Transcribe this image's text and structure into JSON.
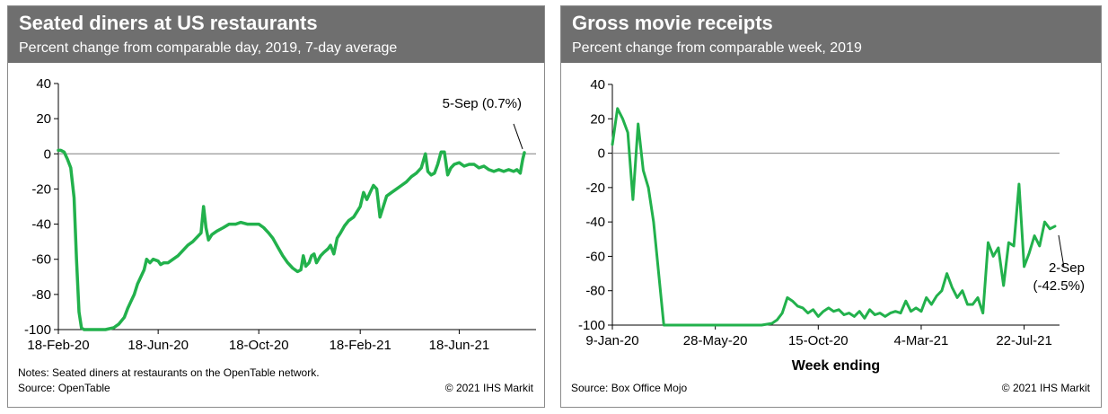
{
  "colors": {
    "series": "#22b14c",
    "header_bg": "#6f6f6f",
    "zero_line": "#7f7f7f"
  },
  "panels": {
    "left": {
      "title": "Seated diners at US restaurants",
      "subtitle": "Percent change from comparable day, 2019, 7-day average",
      "notes": "Notes: Seated diners at restaurants on the OpenTable network.",
      "source": "Source: OpenTable",
      "copyright": "© 2021 IHS Markit"
    },
    "right": {
      "title": "Gross movie receipts",
      "subtitle": "Percent change from comparable week, 2019",
      "source": "Source: Box Office Mojo",
      "copyright": "© 2021 IHS Markit"
    }
  },
  "chart_data": [
    {
      "type": "line",
      "title": "Seated diners at US restaurants",
      "subtitle": "Percent change from comparable day, 2019, 7-day average",
      "xlabel": "",
      "ylabel": "",
      "x_range": [
        "2020-02-18",
        "2021-09-05"
      ],
      "ylim": [
        -100,
        40
      ],
      "yticks": [
        40,
        20,
        0,
        -20,
        -40,
        -60,
        -80,
        -100
      ],
      "xticks": [
        {
          "date": "2020-02-18",
          "label": "18-Feb-20"
        },
        {
          "date": "2020-06-18",
          "label": "18-Jun-20"
        },
        {
          "date": "2020-10-18",
          "label": "18-Oct-20"
        },
        {
          "date": "2021-02-18",
          "label": "18-Feb-21"
        },
        {
          "date": "2021-06-18",
          "label": "18-Jun-21"
        }
      ],
      "grid": false,
      "zero_line": true,
      "annotation": {
        "text": "5-Sep (0.7%)",
        "date": "2021-09-05",
        "value": 0.7
      },
      "series": [
        {
          "points": [
            [
              "2020-02-18",
              2
            ],
            [
              "2020-02-21",
              2
            ],
            [
              "2020-02-25",
              1
            ],
            [
              "2020-02-29",
              -3
            ],
            [
              "2020-03-04",
              -8
            ],
            [
              "2020-03-08",
              -25
            ],
            [
              "2020-03-11",
              -60
            ],
            [
              "2020-03-14",
              -90
            ],
            [
              "2020-03-17",
              -99
            ],
            [
              "2020-03-20",
              -100
            ],
            [
              "2020-04-01",
              -100
            ],
            [
              "2020-04-15",
              -100
            ],
            [
              "2020-04-25",
              -99
            ],
            [
              "2020-05-01",
              -97
            ],
            [
              "2020-05-08",
              -93
            ],
            [
              "2020-05-12",
              -88
            ],
            [
              "2020-05-16",
              -84
            ],
            [
              "2020-05-20",
              -80
            ],
            [
              "2020-05-24",
              -74
            ],
            [
              "2020-05-28",
              -70
            ],
            [
              "2020-06-01",
              -66
            ],
            [
              "2020-06-04",
              -60
            ],
            [
              "2020-06-08",
              -62
            ],
            [
              "2020-06-12",
              -60
            ],
            [
              "2020-06-18",
              -61
            ],
            [
              "2020-06-21",
              -63
            ],
            [
              "2020-06-25",
              -62
            ],
            [
              "2020-06-30",
              -62
            ],
            [
              "2020-07-06",
              -60
            ],
            [
              "2020-07-12",
              -58
            ],
            [
              "2020-07-18",
              -55
            ],
            [
              "2020-07-24",
              -52
            ],
            [
              "2020-07-30",
              -50
            ],
            [
              "2020-08-05",
              -47
            ],
            [
              "2020-08-09",
              -45
            ],
            [
              "2020-08-12",
              -30
            ],
            [
              "2020-08-15",
              -42
            ],
            [
              "2020-08-18",
              -49
            ],
            [
              "2020-08-22",
              -46
            ],
            [
              "2020-08-28",
              -44
            ],
            [
              "2020-09-05",
              -42
            ],
            [
              "2020-09-12",
              -40
            ],
            [
              "2020-09-20",
              -40
            ],
            [
              "2020-09-26",
              -39
            ],
            [
              "2020-10-04",
              -40
            ],
            [
              "2020-10-10",
              -40
            ],
            [
              "2020-10-18",
              -40
            ],
            [
              "2020-10-24",
              -42
            ],
            [
              "2020-10-30",
              -45
            ],
            [
              "2020-11-04",
              -48
            ],
            [
              "2020-11-10",
              -53
            ],
            [
              "2020-11-16",
              -58
            ],
            [
              "2020-11-22",
              -62
            ],
            [
              "2020-11-28",
              -65
            ],
            [
              "2020-12-04",
              -67
            ],
            [
              "2020-12-08",
              -66
            ],
            [
              "2020-12-11",
              -58
            ],
            [
              "2020-12-14",
              -64
            ],
            [
              "2020-12-18",
              -62
            ],
            [
              "2020-12-21",
              -58
            ],
            [
              "2020-12-24",
              -57
            ],
            [
              "2020-12-27",
              -62
            ],
            [
              "2021-01-01",
              -58
            ],
            [
              "2021-01-05",
              -56
            ],
            [
              "2021-01-10",
              -54
            ],
            [
              "2021-01-13",
              -52
            ],
            [
              "2021-01-17",
              -57
            ],
            [
              "2021-01-21",
              -48
            ],
            [
              "2021-01-25",
              -45
            ],
            [
              "2021-01-30",
              -41
            ],
            [
              "2021-02-04",
              -38
            ],
            [
              "2021-02-10",
              -36
            ],
            [
              "2021-02-14",
              -33
            ],
            [
              "2021-02-18",
              -30
            ],
            [
              "2021-02-22",
              -22
            ],
            [
              "2021-02-26",
              -26
            ],
            [
              "2021-03-02",
              -22
            ],
            [
              "2021-03-06",
              -18
            ],
            [
              "2021-03-10",
              -20
            ],
            [
              "2021-03-14",
              -36
            ],
            [
              "2021-03-18",
              -30
            ],
            [
              "2021-03-22",
              -24
            ],
            [
              "2021-03-28",
              -22
            ],
            [
              "2021-04-03",
              -20
            ],
            [
              "2021-04-09",
              -18
            ],
            [
              "2021-04-15",
              -16
            ],
            [
              "2021-04-21",
              -13
            ],
            [
              "2021-04-27",
              -11
            ],
            [
              "2021-05-03",
              -8
            ],
            [
              "2021-05-08",
              0
            ],
            [
              "2021-05-11",
              -10
            ],
            [
              "2021-05-15",
              -12
            ],
            [
              "2021-05-19",
              -11
            ],
            [
              "2021-05-23",
              -6
            ],
            [
              "2021-05-27",
              1
            ],
            [
              "2021-05-31",
              1
            ],
            [
              "2021-06-04",
              -12
            ],
            [
              "2021-06-08",
              -8
            ],
            [
              "2021-06-12",
              -6
            ],
            [
              "2021-06-18",
              -5
            ],
            [
              "2021-06-24",
              -7
            ],
            [
              "2021-06-30",
              -6
            ],
            [
              "2021-07-06",
              -6
            ],
            [
              "2021-07-12",
              -8
            ],
            [
              "2021-07-18",
              -7
            ],
            [
              "2021-07-24",
              -9
            ],
            [
              "2021-07-30",
              -10
            ],
            [
              "2021-08-05",
              -9
            ],
            [
              "2021-08-11",
              -10
            ],
            [
              "2021-08-17",
              -9
            ],
            [
              "2021-08-23",
              -10
            ],
            [
              "2021-08-27",
              -9
            ],
            [
              "2021-08-31",
              -11
            ],
            [
              "2021-09-03",
              -3
            ],
            [
              "2021-09-05",
              0.7
            ]
          ]
        }
      ]
    },
    {
      "type": "line",
      "title": "Gross movie receipts",
      "subtitle": "Percent change from comparable week, 2019",
      "xlabel": "Week ending",
      "ylabel": "",
      "x_range": [
        "2020-01-09",
        "2021-09-02"
      ],
      "ylim": [
        -100,
        40
      ],
      "yticks": [
        40,
        20,
        0,
        -20,
        -40,
        -60,
        -80,
        -100
      ],
      "xticks": [
        {
          "date": "2020-01-09",
          "label": "9-Jan-20"
        },
        {
          "date": "2020-05-28",
          "label": "28-May-20"
        },
        {
          "date": "2020-10-15",
          "label": "15-Oct-20"
        },
        {
          "date": "2021-03-04",
          "label": "4-Mar-21"
        },
        {
          "date": "2021-07-22",
          "label": "22-Jul-21"
        }
      ],
      "grid": false,
      "zero_line": true,
      "annotation": {
        "text": [
          "2-Sep",
          "(-42.5%)"
        ],
        "date": "2021-09-02",
        "value": -42.5
      },
      "series": [
        {
          "points": [
            [
              "2020-01-09",
              5
            ],
            [
              "2020-01-16",
              26
            ],
            [
              "2020-01-23",
              20
            ],
            [
              "2020-01-30",
              12
            ],
            [
              "2020-02-06",
              -27
            ],
            [
              "2020-02-13",
              17
            ],
            [
              "2020-02-20",
              -10
            ],
            [
              "2020-02-27",
              -20
            ],
            [
              "2020-03-05",
              -40
            ],
            [
              "2020-03-12",
              -70
            ],
            [
              "2020-03-19",
              -100
            ],
            [
              "2020-04-02",
              -100
            ],
            [
              "2020-05-07",
              -100
            ],
            [
              "2020-06-11",
              -100
            ],
            [
              "2020-07-09",
              -100
            ],
            [
              "2020-07-30",
              -100
            ],
            [
              "2020-08-13",
              -99
            ],
            [
              "2020-08-20",
              -97
            ],
            [
              "2020-08-27",
              -93
            ],
            [
              "2020-09-03",
              -84
            ],
            [
              "2020-09-10",
              -86
            ],
            [
              "2020-09-17",
              -89
            ],
            [
              "2020-09-24",
              -90
            ],
            [
              "2020-10-01",
              -93
            ],
            [
              "2020-10-08",
              -91
            ],
            [
              "2020-10-15",
              -95
            ],
            [
              "2020-10-22",
              -92
            ],
            [
              "2020-10-29",
              -90
            ],
            [
              "2020-11-05",
              -92
            ],
            [
              "2020-11-12",
              -91
            ],
            [
              "2020-11-19",
              -94
            ],
            [
              "2020-11-26",
              -93
            ],
            [
              "2020-12-03",
              -95
            ],
            [
              "2020-12-10",
              -92
            ],
            [
              "2020-12-17",
              -96
            ],
            [
              "2020-12-24",
              -91
            ],
            [
              "2020-12-31",
              -94
            ],
            [
              "2021-01-07",
              -93
            ],
            [
              "2021-01-14",
              -95
            ],
            [
              "2021-01-21",
              -93
            ],
            [
              "2021-01-28",
              -92
            ],
            [
              "2021-02-04",
              -93
            ],
            [
              "2021-02-11",
              -86
            ],
            [
              "2021-02-18",
              -92
            ],
            [
              "2021-02-25",
              -90
            ],
            [
              "2021-03-04",
              -92
            ],
            [
              "2021-03-11",
              -84
            ],
            [
              "2021-03-18",
              -88
            ],
            [
              "2021-03-25",
              -83
            ],
            [
              "2021-04-01",
              -80
            ],
            [
              "2021-04-08",
              -70
            ],
            [
              "2021-04-15",
              -78
            ],
            [
              "2021-04-22",
              -84
            ],
            [
              "2021-04-29",
              -80
            ],
            [
              "2021-05-06",
              -88
            ],
            [
              "2021-05-13",
              -88
            ],
            [
              "2021-05-20",
              -84
            ],
            [
              "2021-05-27",
              -93
            ],
            [
              "2021-06-03",
              -52
            ],
            [
              "2021-06-10",
              -60
            ],
            [
              "2021-06-17",
              -55
            ],
            [
              "2021-06-24",
              -77
            ],
            [
              "2021-07-01",
              -52
            ],
            [
              "2021-07-08",
              -54
            ],
            [
              "2021-07-15",
              -18
            ],
            [
              "2021-07-22",
              -66
            ],
            [
              "2021-07-29",
              -58
            ],
            [
              "2021-08-05",
              -48
            ],
            [
              "2021-08-12",
              -54
            ],
            [
              "2021-08-19",
              -40
            ],
            [
              "2021-08-26",
              -44
            ],
            [
              "2021-09-02",
              -42.5
            ]
          ]
        }
      ]
    }
  ]
}
